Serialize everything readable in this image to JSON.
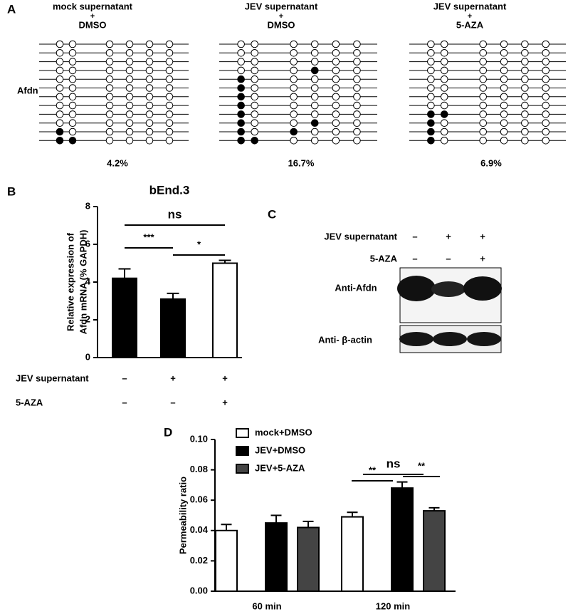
{
  "panel_a": {
    "label": "A",
    "gene": "Afdn",
    "groups": [
      {
        "title": [
          "mock supernatant",
          "+",
          "DMSO"
        ],
        "percent": "4.2%",
        "methylation": [
          [
            0,
            0,
            0,
            0,
            0,
            0
          ],
          [
            0,
            0,
            0,
            0,
            0,
            0
          ],
          [
            0,
            0,
            0,
            0,
            0,
            0
          ],
          [
            0,
            0,
            0,
            0,
            0,
            0
          ],
          [
            0,
            0,
            0,
            0,
            0,
            0
          ],
          [
            0,
            0,
            0,
            0,
            0,
            0
          ],
          [
            0,
            0,
            0,
            0,
            0,
            0
          ],
          [
            0,
            0,
            0,
            0,
            0,
            0
          ],
          [
            0,
            0,
            0,
            0,
            0,
            0
          ],
          [
            0,
            0,
            0,
            0,
            0,
            0
          ],
          [
            1,
            0,
            0,
            0,
            0,
            0
          ],
          [
            1,
            1,
            0,
            0,
            0,
            0
          ]
        ]
      },
      {
        "title": [
          "JEV supernatant",
          "+",
          "DMSO"
        ],
        "percent": "16.7%",
        "methylation": [
          [
            0,
            0,
            0,
            0,
            0,
            0
          ],
          [
            0,
            0,
            0,
            0,
            0,
            0
          ],
          [
            0,
            0,
            0,
            0,
            0,
            0
          ],
          [
            0,
            0,
            0,
            1,
            0,
            0
          ],
          [
            1,
            0,
            0,
            0,
            0,
            0
          ],
          [
            1,
            0,
            0,
            0,
            0,
            0
          ],
          [
            1,
            0,
            0,
            0,
            0,
            0
          ],
          [
            1,
            0,
            0,
            0,
            0,
            0
          ],
          [
            1,
            0,
            0,
            0,
            0,
            0
          ],
          [
            1,
            0,
            0,
            1,
            0,
            0
          ],
          [
            1,
            0,
            1,
            0,
            0,
            0
          ],
          [
            1,
            1,
            0,
            0,
            0,
            0
          ]
        ]
      },
      {
        "title": [
          "JEV supernatant",
          "+",
          "5-AZA"
        ],
        "percent": "6.9%",
        "methylation": [
          [
            0,
            0,
            0,
            0,
            0,
            0
          ],
          [
            0,
            0,
            0,
            0,
            0,
            0
          ],
          [
            0,
            0,
            0,
            0,
            0,
            0
          ],
          [
            0,
            0,
            0,
            0,
            0,
            0
          ],
          [
            0,
            0,
            0,
            0,
            0,
            0
          ],
          [
            0,
            0,
            0,
            0,
            0,
            0
          ],
          [
            0,
            0,
            0,
            0,
            0,
            0
          ],
          [
            0,
            0,
            0,
            0,
            0,
            0
          ],
          [
            1,
            1,
            0,
            0,
            0,
            0
          ],
          [
            1,
            0,
            0,
            0,
            0,
            0
          ],
          [
            1,
            0,
            0,
            0,
            0,
            0
          ],
          [
            1,
            0,
            0,
            0,
            0,
            0
          ]
        ]
      }
    ]
  },
  "panel_c": {
    "label": "C",
    "conditions": [
      {
        "name": "JEV supernatant",
        "signs": [
          "–",
          "+",
          "+"
        ]
      },
      {
        "name": "5-AZA",
        "signs": [
          "–",
          "–",
          "+"
        ]
      }
    ],
    "bands": [
      "Anti-Afdn",
      "Anti- β-actin"
    ]
  },
  "chart_data": [
    {
      "type": "bar",
      "panel": "B",
      "title": "bEnd.3",
      "y_label": [
        "Relative expression of",
        "Afdn mRNA (% GAPDH)"
      ],
      "values": [
        4.2,
        3.1,
        5.0
      ],
      "errors": [
        0.5,
        0.3,
        0.15
      ],
      "colors": [
        "#000000",
        "#000000",
        "#ffffff"
      ],
      "ylim": [
        0,
        8
      ],
      "yticks": [
        0,
        2,
        4,
        6,
        8
      ],
      "annotations": [
        "ns",
        "***",
        "*"
      ],
      "conditions": [
        {
          "name": "JEV supernatant",
          "signs": [
            "–",
            "+",
            "+"
          ]
        },
        {
          "name": "5-AZA",
          "signs": [
            "–",
            "–",
            "+"
          ]
        }
      ]
    },
    {
      "type": "bar",
      "panel": "D",
      "y_label": "Permeability ratio",
      "categories": [
        "60 min",
        "120 min"
      ],
      "series": [
        {
          "name": "mock+DMSO",
          "color": "#ffffff",
          "values": [
            0.04,
            0.049
          ],
          "errors": [
            0.004,
            0.003
          ]
        },
        {
          "name": "JEV+DMSO",
          "color": "#000000",
          "values": [
            0.045,
            0.068
          ],
          "errors": [
            0.005,
            0.004
          ]
        },
        {
          "name": "JEV+5-AZA",
          "color": "#444444",
          "values": [
            0.042,
            0.053
          ],
          "errors": [
            0.004,
            0.002
          ]
        }
      ],
      "ylim": [
        0,
        0.1
      ],
      "yticks": [
        {
          "value": 0,
          "label": "0.00"
        },
        {
          "value": 0.02,
          "label": "0.02"
        },
        {
          "value": 0.04,
          "label": "0.04"
        },
        {
          "value": 0.06,
          "label": "0.06"
        },
        {
          "value": 0.08,
          "label": "0.08"
        },
        {
          "value": 0.1,
          "label": "0.10"
        }
      ],
      "annotations": [
        "ns",
        "**",
        "**"
      ]
    }
  ]
}
